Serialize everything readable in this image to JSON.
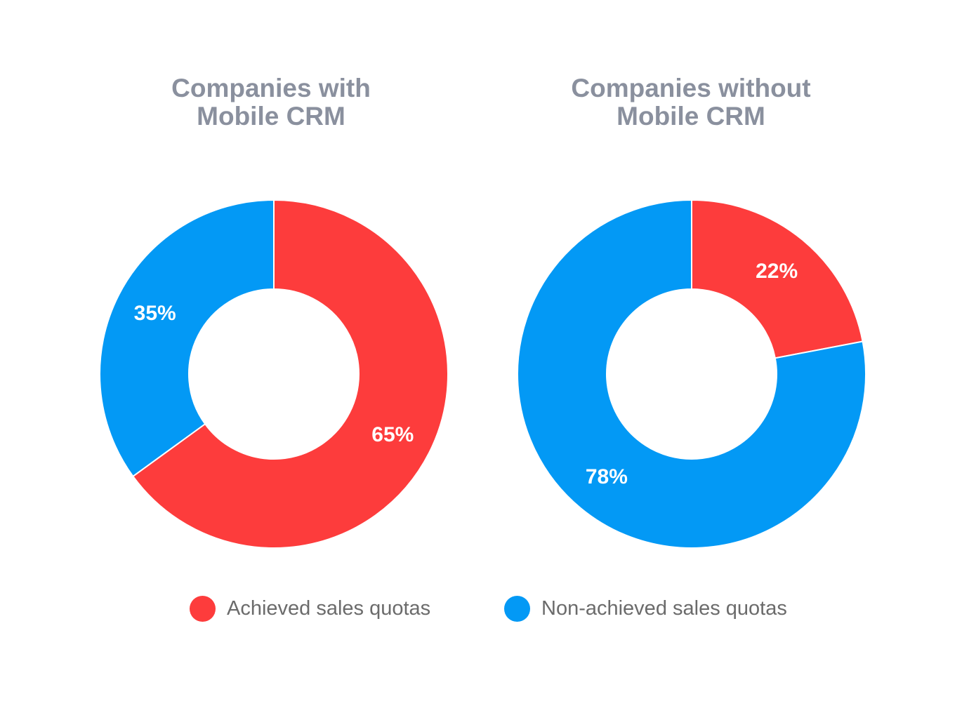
{
  "colors": {
    "achieved": "#fd3c3c",
    "non_achieved": "#0399f5",
    "title": "#8a909e",
    "legend_text": "#6b6b6b"
  },
  "legend": [
    {
      "label": "Achieved sales quotas",
      "color": "#fd3c3c"
    },
    {
      "label": "Non-achieved sales quotas",
      "color": "#0399f5"
    }
  ],
  "chart_data": [
    {
      "type": "pie",
      "donut": true,
      "title": [
        "Companies with",
        "Mobile CRM"
      ],
      "slices": [
        {
          "label": "Achieved sales quotas",
          "value": 65,
          "display": "65%",
          "color": "#fd3c3c"
        },
        {
          "label": "Non-achieved sales quotas",
          "value": 35,
          "display": "35%",
          "color": "#0399f5"
        }
      ],
      "start_angle": "12 o'clock",
      "direction": "clockwise",
      "legend": "bottom-center"
    },
    {
      "type": "pie",
      "donut": true,
      "title": [
        "Companies without",
        "Mobile CRM"
      ],
      "slices": [
        {
          "label": "Achieved sales quotas",
          "value": 22,
          "display": "22%",
          "color": "#fd3c3c"
        },
        {
          "label": "Non-achieved sales quotas",
          "value": 78,
          "display": "78%",
          "color": "#0399f5"
        }
      ],
      "start_angle": "12 o'clock",
      "direction": "clockwise",
      "legend": "bottom-center"
    }
  ]
}
